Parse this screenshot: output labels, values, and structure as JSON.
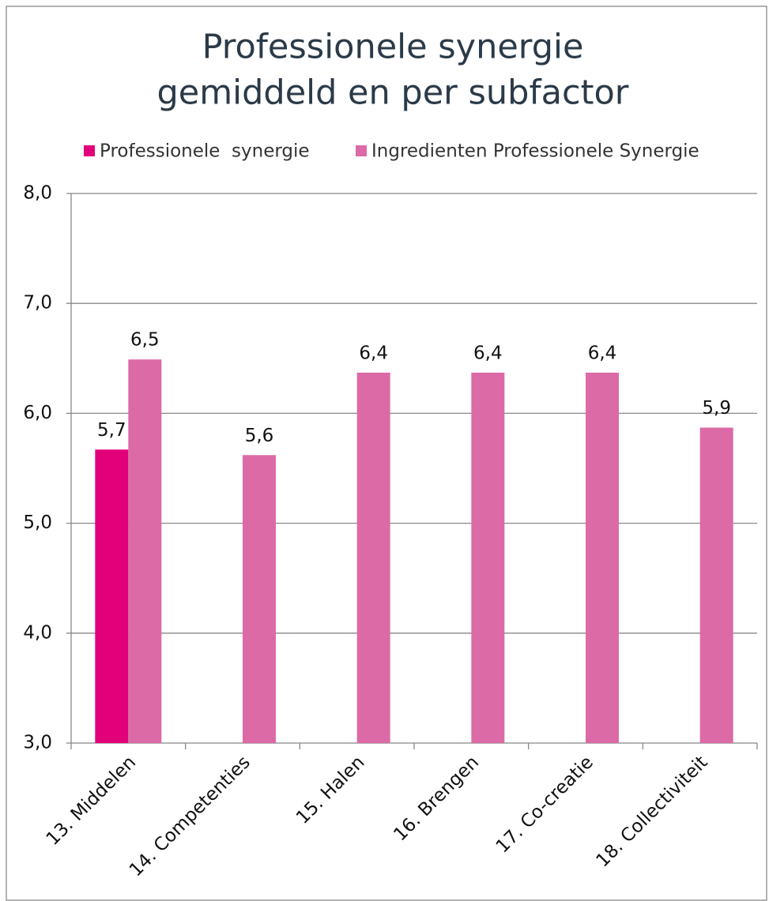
{
  "chart_data": {
    "type": "bar",
    "title": [
      "Professionele synergie",
      "gemiddeld en per subfactor"
    ],
    "categories": [
      "13. Middelen",
      "14. Competenties",
      "15. Halen",
      "16. Brengen",
      "17. Co-creatie",
      "18. Collectiviteit"
    ],
    "series": [
      {
        "name": "Professionele  synergie",
        "color": "#e2007a",
        "values": [
          5.67,
          null,
          null,
          null,
          null,
          null
        ],
        "value_labels": [
          "5,7",
          null,
          null,
          null,
          null,
          null
        ]
      },
      {
        "name": "Ingredienten Professionele Synergie",
        "color": "#dc6aa7",
        "values": [
          6.49,
          5.62,
          6.37,
          6.37,
          6.37,
          5.87
        ],
        "value_labels": [
          "6,5",
          "5,6",
          "6,4",
          "6,4",
          "6,4",
          "5,9"
        ]
      }
    ],
    "ylim": [
      3,
      8
    ],
    "yticks": [
      {
        "value": 3,
        "label": "3,0"
      },
      {
        "value": 4,
        "label": "4,0"
      },
      {
        "value": 5,
        "label": "5,0"
      },
      {
        "value": 6,
        "label": "6,0"
      },
      {
        "value": 7,
        "label": "7,0"
      },
      {
        "value": 8,
        "label": "8,0"
      }
    ],
    "grid": true,
    "legend": "top"
  }
}
